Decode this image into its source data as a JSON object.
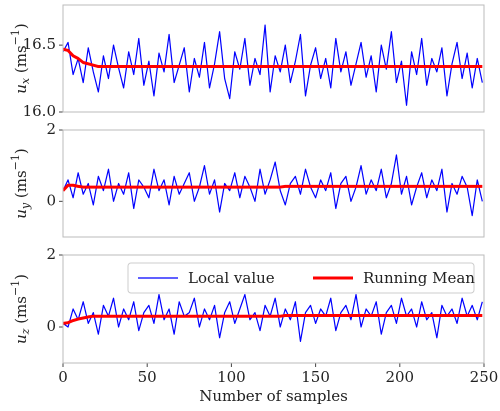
{
  "chart_data": [
    {
      "type": "line",
      "ylabel": {
        "main": "u",
        "sub": "x",
        "unit": " (ms",
        "sup": "−1",
        "close": ")"
      },
      "x": [
        0,
        3,
        6,
        9,
        12,
        15,
        18,
        21,
        24,
        27,
        30,
        33,
        36,
        39,
        42,
        45,
        48,
        51,
        54,
        57,
        60,
        63,
        66,
        69,
        72,
        75,
        78,
        81,
        84,
        87,
        90,
        93,
        96,
        99,
        102,
        105,
        108,
        111,
        114,
        117,
        120,
        123,
        126,
        129,
        132,
        135,
        138,
        141,
        144,
        147,
        150,
        153,
        156,
        159,
        162,
        165,
        168,
        171,
        174,
        177,
        180,
        183,
        186,
        189,
        192,
        195,
        198,
        201,
        204,
        207,
        210,
        213,
        216,
        219,
        222,
        225,
        228,
        231,
        234,
        237,
        240,
        243,
        246,
        249
      ],
      "xlim": [
        0,
        250
      ],
      "ylim": [
        16.0,
        16.8
      ],
      "yticks": [
        {
          "value": 16.0,
          "label": "16.0"
        },
        16.5
      ],
      "series": [
        {
          "color": "#0000ff",
          "width": 1.2,
          "values": [
            16.45,
            16.52,
            16.28,
            16.4,
            16.22,
            16.48,
            16.3,
            16.15,
            16.42,
            16.25,
            16.5,
            16.33,
            16.18,
            16.45,
            16.28,
            16.55,
            16.2,
            16.38,
            16.12,
            16.44,
            16.3,
            16.58,
            16.22,
            16.35,
            16.48,
            16.15,
            16.4,
            16.26,
            16.52,
            16.18,
            16.36,
            16.6,
            16.25,
            16.1,
            16.45,
            16.32,
            16.55,
            16.2,
            16.4,
            16.28,
            16.65,
            16.15,
            16.42,
            16.3,
            16.5,
            16.22,
            16.38,
            16.58,
            16.12,
            16.35,
            16.48,
            16.25,
            16.4,
            16.18,
            16.55,
            16.3,
            16.45,
            16.2,
            16.36,
            16.52,
            16.26,
            16.42,
            16.15,
            16.5,
            16.32,
            16.6,
            16.22,
            16.38,
            16.05,
            16.45,
            16.28,
            16.55,
            16.2,
            16.4,
            16.3,
            16.48,
            16.12,
            16.36,
            16.52,
            16.25,
            16.44,
            16.18,
            16.4,
            16.22
          ]
        },
        {
          "color": "#ff0000",
          "width": 3,
          "values": [
            16.47,
            16.46,
            16.42,
            16.4,
            16.37,
            16.36,
            16.35,
            16.34,
            16.34,
            16.34,
            16.34,
            16.34,
            16.34,
            16.34,
            16.34,
            16.34,
            16.34,
            16.34,
            16.34,
            16.34,
            16.34,
            16.34,
            16.34,
            16.34,
            16.34,
            16.34,
            16.34,
            16.34,
            16.34,
            16.34,
            16.34,
            16.34,
            16.34,
            16.34,
            16.34,
            16.34,
            16.34,
            16.34,
            16.34,
            16.34,
            16.34,
            16.34,
            16.34,
            16.34,
            16.34,
            16.34,
            16.34,
            16.34,
            16.34,
            16.34,
            16.34,
            16.34,
            16.34,
            16.34,
            16.34,
            16.34,
            16.34,
            16.34,
            16.34,
            16.34,
            16.34,
            16.34,
            16.34,
            16.34,
            16.34,
            16.34,
            16.34,
            16.34,
            16.34,
            16.34,
            16.34,
            16.34,
            16.34,
            16.34,
            16.34,
            16.34,
            16.34,
            16.34,
            16.34,
            16.34,
            16.34,
            16.34,
            16.34,
            16.34
          ]
        }
      ]
    },
    {
      "type": "line",
      "ylabel": {
        "main": "u",
        "sub": "y",
        "unit": " (ms",
        "sup": "−1",
        "close": ")"
      },
      "x": [
        0,
        3,
        6,
        9,
        12,
        15,
        18,
        21,
        24,
        27,
        30,
        33,
        36,
        39,
        42,
        45,
        48,
        51,
        54,
        57,
        60,
        63,
        66,
        69,
        72,
        75,
        78,
        81,
        84,
        87,
        90,
        93,
        96,
        99,
        102,
        105,
        108,
        111,
        114,
        117,
        120,
        123,
        126,
        129,
        132,
        135,
        138,
        141,
        144,
        147,
        150,
        153,
        156,
        159,
        162,
        165,
        168,
        171,
        174,
        177,
        180,
        183,
        186,
        189,
        192,
        195,
        198,
        201,
        204,
        207,
        210,
        213,
        216,
        219,
        222,
        225,
        228,
        231,
        234,
        237,
        240,
        243,
        246,
        249
      ],
      "xlim": [
        0,
        250
      ],
      "ylim": [
        -1,
        2
      ],
      "yticks": [
        0,
        2
      ],
      "series": [
        {
          "color": "#0000ff",
          "width": 1.2,
          "values": [
            0.3,
            0.6,
            0.1,
            0.8,
            0.2,
            0.5,
            -0.1,
            0.7,
            0.3,
            0.9,
            0.0,
            0.5,
            0.2,
            0.8,
            -0.2,
            0.6,
            0.4,
            0.1,
            0.9,
            0.3,
            0.6,
            -0.1,
            0.7,
            0.2,
            0.5,
            0.8,
            0.0,
            0.4,
            1.0,
            0.2,
            0.6,
            -0.3,
            0.5,
            0.3,
            0.8,
            0.1,
            0.7,
            0.4,
            0.0,
            0.9,
            0.2,
            0.6,
            1.1,
            0.3,
            -0.1,
            0.5,
            0.7,
            0.2,
            0.9,
            0.4,
            0.1,
            0.6,
            0.3,
            0.8,
            -0.2,
            0.5,
            0.7,
            0.0,
            0.4,
            1.0,
            0.2,
            0.6,
            0.3,
            0.9,
            0.1,
            0.5,
            1.3,
            0.2,
            0.7,
            -0.1,
            0.4,
            0.8,
            0.1,
            0.6,
            0.3,
            0.9,
            -0.3,
            0.5,
            0.2,
            0.7,
            0.4,
            -0.4,
            0.6,
            0.0
          ]
        },
        {
          "color": "#ff0000",
          "width": 3,
          "values": [
            0.3,
            0.45,
            0.45,
            0.42,
            0.4,
            0.4,
            0.4,
            0.4,
            0.4,
            0.4,
            0.4,
            0.4,
            0.4,
            0.4,
            0.4,
            0.4,
            0.4,
            0.4,
            0.4,
            0.4,
            0.4,
            0.4,
            0.4,
            0.4,
            0.4,
            0.4,
            0.4,
            0.4,
            0.4,
            0.4,
            0.4,
            0.4,
            0.4,
            0.4,
            0.4,
            0.4,
            0.4,
            0.4,
            0.4,
            0.4,
            0.4,
            0.4,
            0.4,
            0.4,
            0.42,
            0.42,
            0.42,
            0.42,
            0.42,
            0.42,
            0.42,
            0.42,
            0.42,
            0.42,
            0.42,
            0.42,
            0.42,
            0.42,
            0.42,
            0.42,
            0.42,
            0.42,
            0.42,
            0.42,
            0.42,
            0.42,
            0.42,
            0.42,
            0.42,
            0.42,
            0.42,
            0.42,
            0.42,
            0.42,
            0.42,
            0.42,
            0.42,
            0.42,
            0.42,
            0.42,
            0.42,
            0.42,
            0.42,
            0.42
          ]
        }
      ]
    },
    {
      "type": "line",
      "ylabel": {
        "main": "u",
        "sub": "z",
        "unit": " (ms",
        "sup": "−1",
        "close": ")"
      },
      "xlabel": "Number of samples",
      "x": [
        0,
        3,
        6,
        9,
        12,
        15,
        18,
        21,
        24,
        27,
        30,
        33,
        36,
        39,
        42,
        45,
        48,
        51,
        54,
        57,
        60,
        63,
        66,
        69,
        72,
        75,
        78,
        81,
        84,
        87,
        90,
        93,
        96,
        99,
        102,
        105,
        108,
        111,
        114,
        117,
        120,
        123,
        126,
        129,
        132,
        135,
        138,
        141,
        144,
        147,
        150,
        153,
        156,
        159,
        162,
        165,
        168,
        171,
        174,
        177,
        180,
        183,
        186,
        189,
        192,
        195,
        198,
        201,
        204,
        207,
        210,
        213,
        216,
        219,
        222,
        225,
        228,
        231,
        234,
        237,
        240,
        243,
        246,
        249
      ],
      "xlim": [
        0,
        250
      ],
      "ylim": [
        -1,
        2
      ],
      "xticks": [
        0,
        50,
        100,
        150,
        200,
        250
      ],
      "yticks": [
        0,
        2
      ],
      "legend": "upper right",
      "series": [
        {
          "name": "Local value",
          "color": "#0000ff",
          "width": 1.2,
          "values": [
            0.1,
            0.0,
            0.5,
            0.2,
            0.7,
            0.1,
            0.4,
            -0.2,
            0.6,
            0.3,
            0.8,
            0.0,
            0.5,
            0.2,
            0.7,
            -0.1,
            0.4,
            0.6,
            0.1,
            0.9,
            0.2,
            0.5,
            -0.2,
            0.7,
            0.3,
            0.4,
            0.8,
            0.0,
            0.5,
            0.2,
            0.6,
            -0.3,
            0.4,
            0.7,
            0.1,
            0.5,
            0.9,
            0.2,
            0.4,
            -0.1,
            0.6,
            0.3,
            0.8,
            0.0,
            0.5,
            0.2,
            0.7,
            -0.4,
            0.4,
            0.6,
            0.1,
            0.5,
            0.3,
            0.8,
            -0.1,
            0.4,
            0.6,
            0.2,
            0.9,
            0.0,
            0.5,
            0.3,
            0.7,
            -0.2,
            0.4,
            0.6,
            0.1,
            0.8,
            0.3,
            0.5,
            0.0,
            0.7,
            0.2,
            0.4,
            -0.3,
            0.6,
            0.3,
            0.5,
            0.1,
            0.8,
            0.3,
            0.6,
            0.2,
            0.7
          ]
        },
        {
          "name": "Running Mean",
          "color": "#ff0000",
          "width": 3,
          "values": [
            0.1,
            0.12,
            0.18,
            0.22,
            0.25,
            0.28,
            0.3,
            0.3,
            0.3,
            0.3,
            0.3,
            0.3,
            0.3,
            0.3,
            0.3,
            0.3,
            0.3,
            0.3,
            0.3,
            0.3,
            0.3,
            0.3,
            0.3,
            0.3,
            0.3,
            0.3,
            0.3,
            0.3,
            0.3,
            0.3,
            0.3,
            0.3,
            0.3,
            0.3,
            0.3,
            0.3,
            0.3,
            0.3,
            0.3,
            0.3,
            0.3,
            0.3,
            0.3,
            0.3,
            0.32,
            0.32,
            0.32,
            0.32,
            0.32,
            0.32,
            0.32,
            0.32,
            0.32,
            0.32,
            0.32,
            0.32,
            0.32,
            0.32,
            0.32,
            0.32,
            0.32,
            0.32,
            0.32,
            0.32,
            0.32,
            0.32,
            0.32,
            0.32,
            0.32,
            0.32,
            0.32,
            0.32,
            0.32,
            0.32,
            0.32,
            0.32,
            0.32,
            0.32,
            0.32,
            0.32,
            0.32,
            0.32,
            0.32,
            0.32
          ]
        }
      ]
    }
  ]
}
